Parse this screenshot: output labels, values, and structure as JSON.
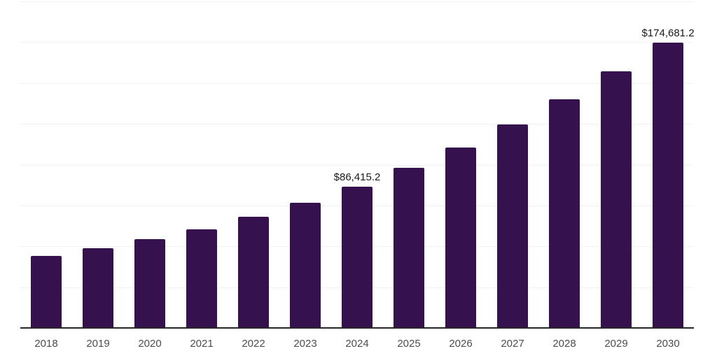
{
  "chart_data": {
    "type": "bar",
    "title": "",
    "xlabel": "",
    "ylabel": "",
    "categories": [
      "2018",
      "2019",
      "2020",
      "2021",
      "2022",
      "2023",
      "2024",
      "2025",
      "2026",
      "2027",
      "2028",
      "2029",
      "2030"
    ],
    "values": [
      44100,
      48800,
      54300,
      60400,
      68000,
      76700,
      86415.2,
      98200,
      110500,
      124600,
      140200,
      157000,
      174681.2
    ],
    "value_labels": {
      "2024": "$86,415.2",
      "2030": "$174,681.2"
    },
    "ylim": [
      0,
      200000
    ],
    "ytick_step": 25000,
    "grid": "horizontal",
    "gridline_count": 9,
    "legend": "none",
    "colors": {
      "bar": "#35114D",
      "gridline": "#f2f2f2",
      "axis_line": "#262626",
      "tick_label": "#4d4d4d",
      "value_label": "#1a1a1a"
    }
  }
}
